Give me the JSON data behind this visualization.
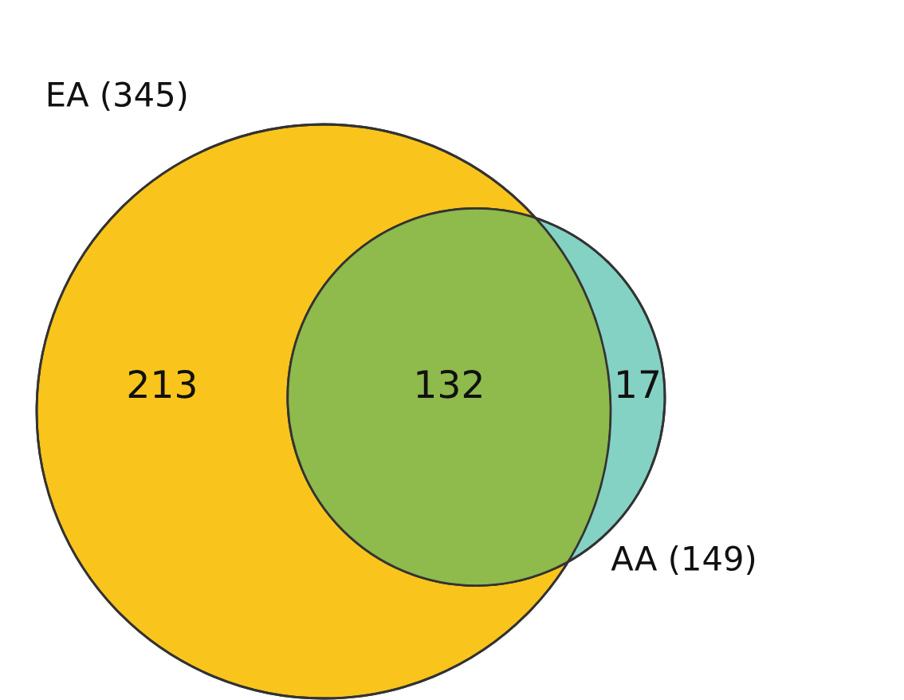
{
  "chart_data": {
    "type": "other",
    "categories": [
      null,
      null,
      null
    ],
    "values": [
      213,
      132,
      17
    ],
    "colors": [
      "#f9c51c",
      "#8fba4c",
      "#84d2c4"
    ],
    "data_labels": true,
    "annotations": [
      "EA (345)",
      "AA (149)"
    ]
  }
}
